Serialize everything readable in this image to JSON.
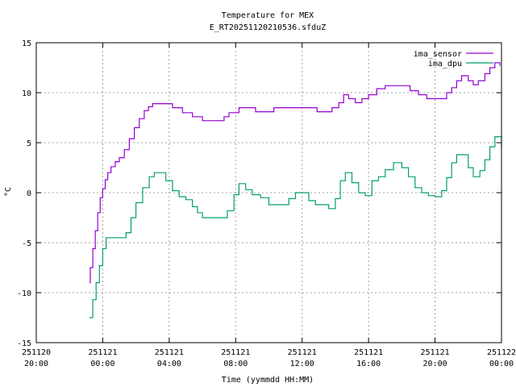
{
  "chart_data": {
    "type": "line",
    "title": "Temperature for MEX",
    "subtitle": "E_RT20251120210536.sfduZ",
    "xlabel": "Time (yymmdd HH:MM)",
    "ylabel": "°C",
    "xlim": [
      -4,
      24
    ],
    "ylim": [
      -15,
      15
    ],
    "grid": true,
    "legend_position": "top-right",
    "x_unit": "hours since 251121 00:00",
    "x_ticks": [
      {
        "date": "251120",
        "time": "20:00"
      },
      {
        "date": "251121",
        "time": "00:00"
      },
      {
        "date": "251121",
        "time": "04:00"
      },
      {
        "date": "251121",
        "time": "08:00"
      },
      {
        "date": "251121",
        "time": "12:00"
      },
      {
        "date": "251121",
        "time": "16:00"
      },
      {
        "date": "251121",
        "time": "20:00"
      },
      {
        "date": "251122",
        "time": "00:00"
      }
    ],
    "y_ticks": [
      "-15",
      "-10",
      "-5",
      "0",
      "5",
      "10",
      "15"
    ],
    "series": [
      {
        "name": "ima_sensor",
        "color": "#9400d3",
        "points": [
          [
            -0.8,
            -9.0
          ],
          [
            -0.75,
            -7.5
          ],
          [
            -0.6,
            -5.6
          ],
          [
            -0.45,
            -3.8
          ],
          [
            -0.3,
            -2.0
          ],
          [
            -0.15,
            -0.5
          ],
          [
            0.0,
            0.4
          ],
          [
            0.15,
            1.3
          ],
          [
            0.3,
            2.0
          ],
          [
            0.5,
            2.6
          ],
          [
            0.75,
            3.1
          ],
          [
            1.0,
            3.5
          ],
          [
            1.3,
            4.3
          ],
          [
            1.6,
            5.4
          ],
          [
            1.9,
            6.5
          ],
          [
            2.2,
            7.4
          ],
          [
            2.5,
            8.2
          ],
          [
            2.75,
            8.6
          ],
          [
            3.0,
            8.9
          ],
          [
            3.5,
            8.9
          ],
          [
            4.0,
            8.9
          ],
          [
            4.2,
            8.5
          ],
          [
            4.8,
            8.0
          ],
          [
            5.4,
            7.6
          ],
          [
            6.0,
            7.2
          ],
          [
            7.0,
            7.2
          ],
          [
            7.3,
            7.6
          ],
          [
            7.6,
            8.0
          ],
          [
            8.2,
            8.5
          ],
          [
            8.8,
            8.5
          ],
          [
            9.2,
            8.1
          ],
          [
            10.0,
            8.1
          ],
          [
            10.3,
            8.5
          ],
          [
            11.0,
            8.5
          ],
          [
            12.0,
            8.5
          ],
          [
            12.8,
            8.5
          ],
          [
            12.9,
            8.1
          ],
          [
            13.5,
            8.1
          ],
          [
            13.8,
            8.5
          ],
          [
            14.2,
            9.0
          ],
          [
            14.5,
            9.8
          ],
          [
            14.8,
            9.4
          ],
          [
            15.2,
            9.0
          ],
          [
            15.6,
            9.4
          ],
          [
            16.0,
            9.8
          ],
          [
            16.5,
            10.4
          ],
          [
            17.0,
            10.7
          ],
          [
            18.0,
            10.7
          ],
          [
            18.5,
            10.2
          ],
          [
            19.0,
            9.8
          ],
          [
            19.5,
            9.4
          ],
          [
            20.0,
            9.4
          ],
          [
            20.4,
            9.4
          ],
          [
            20.7,
            10.0
          ],
          [
            21.0,
            10.5
          ],
          [
            21.3,
            11.2
          ],
          [
            21.6,
            11.7
          ],
          [
            22.0,
            11.2
          ],
          [
            22.3,
            10.8
          ],
          [
            22.6,
            11.2
          ],
          [
            23.0,
            11.9
          ],
          [
            23.3,
            12.5
          ],
          [
            23.6,
            13.0
          ],
          [
            23.9,
            12.7
          ]
        ]
      },
      {
        "name": "ima_dpu",
        "color": "#009e73",
        "points": [
          [
            -0.8,
            -12.5
          ],
          [
            -0.6,
            -10.7
          ],
          [
            -0.4,
            -9.0
          ],
          [
            -0.2,
            -7.3
          ],
          [
            0.0,
            -5.6
          ],
          [
            0.2,
            -4.5
          ],
          [
            0.5,
            -4.5
          ],
          [
            0.9,
            -4.5
          ],
          [
            1.2,
            -4.5
          ],
          [
            1.4,
            -4.0
          ],
          [
            1.7,
            -2.5
          ],
          [
            2.0,
            -1.0
          ],
          [
            2.4,
            0.5
          ],
          [
            2.8,
            1.6
          ],
          [
            3.1,
            2.0
          ],
          [
            3.4,
            2.0
          ],
          [
            3.8,
            1.2
          ],
          [
            4.2,
            0.2
          ],
          [
            4.6,
            -0.4
          ],
          [
            5.0,
            -0.7
          ],
          [
            5.4,
            -1.4
          ],
          [
            5.7,
            -2.0
          ],
          [
            6.0,
            -2.5
          ],
          [
            7.0,
            -2.5
          ],
          [
            7.5,
            -1.8
          ],
          [
            7.9,
            -0.2
          ],
          [
            8.2,
            0.9
          ],
          [
            8.6,
            0.3
          ],
          [
            9.0,
            -0.2
          ],
          [
            9.5,
            -0.5
          ],
          [
            10.0,
            -1.2
          ],
          [
            10.8,
            -1.2
          ],
          [
            11.2,
            -0.6
          ],
          [
            11.6,
            0.0
          ],
          [
            12.0,
            0.0
          ],
          [
            12.4,
            -0.8
          ],
          [
            12.8,
            -1.2
          ],
          [
            13.6,
            -1.6
          ],
          [
            14.0,
            -0.6
          ],
          [
            14.3,
            1.2
          ],
          [
            14.6,
            2.0
          ],
          [
            15.0,
            1.0
          ],
          [
            15.4,
            0.0
          ],
          [
            15.8,
            -0.3
          ],
          [
            16.2,
            1.2
          ],
          [
            16.6,
            1.6
          ],
          [
            17.0,
            2.3
          ],
          [
            17.5,
            3.0
          ],
          [
            18.0,
            2.5
          ],
          [
            18.4,
            1.6
          ],
          [
            18.8,
            0.5
          ],
          [
            19.2,
            0.0
          ],
          [
            19.6,
            -0.3
          ],
          [
            20.0,
            -0.4
          ],
          [
            20.4,
            0.2
          ],
          [
            20.7,
            1.5
          ],
          [
            21.0,
            3.0
          ],
          [
            21.3,
            3.8
          ],
          [
            21.6,
            3.8
          ],
          [
            22.0,
            2.5
          ],
          [
            22.3,
            1.6
          ],
          [
            22.7,
            2.2
          ],
          [
            23.0,
            3.3
          ],
          [
            23.3,
            4.6
          ],
          [
            23.6,
            5.6
          ],
          [
            24.0,
            4.4
          ]
        ]
      }
    ]
  }
}
